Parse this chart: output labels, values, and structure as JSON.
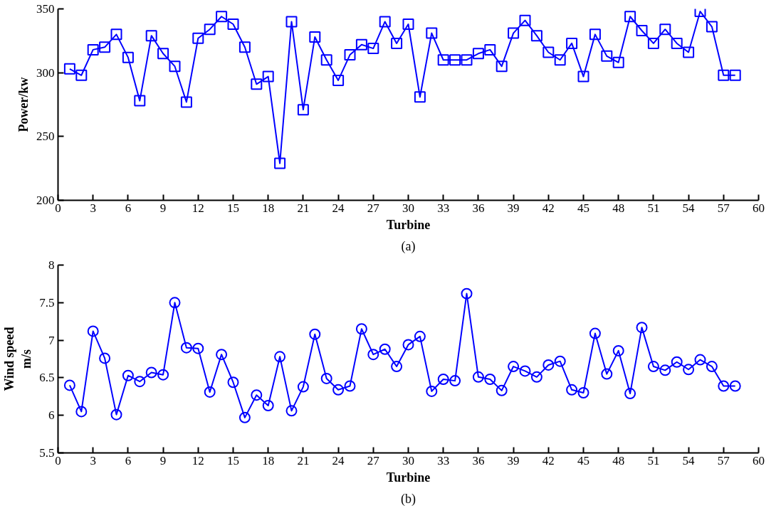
{
  "chart_data": [
    {
      "type": "line",
      "xlabel": "Turbine",
      "ylabel": "Power/kw",
      "annotations": [
        "(a)"
      ],
      "marker": "square",
      "line_style": "solid",
      "grid": false,
      "x": [
        1,
        2,
        3,
        4,
        5,
        6,
        7,
        8,
        9,
        10,
        11,
        12,
        13,
        14,
        15,
        16,
        17,
        18,
        19,
        20,
        21,
        22,
        23,
        24,
        25,
        26,
        27,
        28,
        29,
        30,
        31,
        32,
        33,
        34,
        35,
        36,
        37,
        38,
        39,
        40,
        41,
        42,
        43,
        44,
        45,
        46,
        47,
        48,
        49,
        50,
        51,
        52,
        53,
        54,
        55,
        56,
        57,
        58
      ],
      "series": [
        {
          "color": "#0000ff",
          "values": [
            303,
            298,
            318,
            320,
            330,
            312,
            278,
            329,
            315,
            305,
            277,
            327,
            334,
            344,
            338,
            320,
            291,
            297,
            229,
            340,
            271,
            328,
            310,
            294,
            314,
            322,
            319,
            340,
            323,
            338,
            281,
            331,
            310,
            310,
            310,
            315,
            318,
            305,
            331,
            341,
            329,
            316,
            310,
            323,
            297,
            330,
            313,
            308,
            344,
            333,
            323,
            334,
            323,
            316,
            348,
            336,
            298,
            298
          ]
        }
      ],
      "xlim": [
        0,
        60
      ],
      "xticks": [
        0,
        3,
        6,
        9,
        12,
        15,
        18,
        21,
        24,
        27,
        30,
        33,
        36,
        39,
        42,
        45,
        48,
        51,
        54,
        57,
        60
      ],
      "ylim": [
        200,
        350
      ],
      "yticks": [
        200,
        250,
        300,
        350
      ]
    },
    {
      "type": "line",
      "xlabel": "Turbine",
      "ylabel": "Wind speed\nm/s",
      "annotations": [
        "(b)"
      ],
      "marker": "circle",
      "line_style": "solid",
      "grid": false,
      "x": [
        1,
        2,
        3,
        4,
        5,
        6,
        7,
        8,
        9,
        10,
        11,
        12,
        13,
        14,
        15,
        16,
        17,
        18,
        19,
        20,
        21,
        22,
        23,
        24,
        25,
        26,
        27,
        28,
        29,
        30,
        31,
        32,
        33,
        34,
        35,
        36,
        37,
        38,
        39,
        40,
        41,
        42,
        43,
        44,
        45,
        46,
        47,
        48,
        49,
        50,
        51,
        52,
        53,
        54,
        55,
        56,
        57,
        58
      ],
      "series": [
        {
          "color": "#0000ff",
          "values": [
            6.4,
            6.05,
            7.12,
            6.76,
            6.01,
            6.53,
            6.45,
            6.57,
            6.54,
            7.5,
            6.9,
            6.89,
            6.31,
            6.81,
            6.44,
            5.97,
            6.27,
            6.13,
            6.78,
            6.06,
            6.38,
            7.08,
            6.49,
            6.34,
            6.39,
            7.15,
            6.81,
            6.88,
            6.65,
            6.94,
            7.05,
            6.32,
            6.48,
            6.46,
            7.62,
            6.51,
            6.48,
            6.33,
            6.65,
            6.59,
            6.51,
            6.67,
            6.72,
            6.34,
            6.3,
            7.09,
            6.55,
            6.86,
            6.29,
            7.17,
            6.65,
            6.6,
            6.71,
            6.61,
            6.74,
            6.65,
            6.39,
            6.39
          ]
        }
      ],
      "xlim": [
        0,
        60
      ],
      "xticks": [
        0,
        3,
        6,
        9,
        12,
        15,
        18,
        21,
        24,
        27,
        30,
        33,
        36,
        39,
        42,
        45,
        48,
        51,
        54,
        57,
        60
      ],
      "ylim": [
        5.5,
        8
      ],
      "yticks": [
        5.5,
        6,
        6.5,
        7,
        7.5,
        8
      ]
    }
  ]
}
